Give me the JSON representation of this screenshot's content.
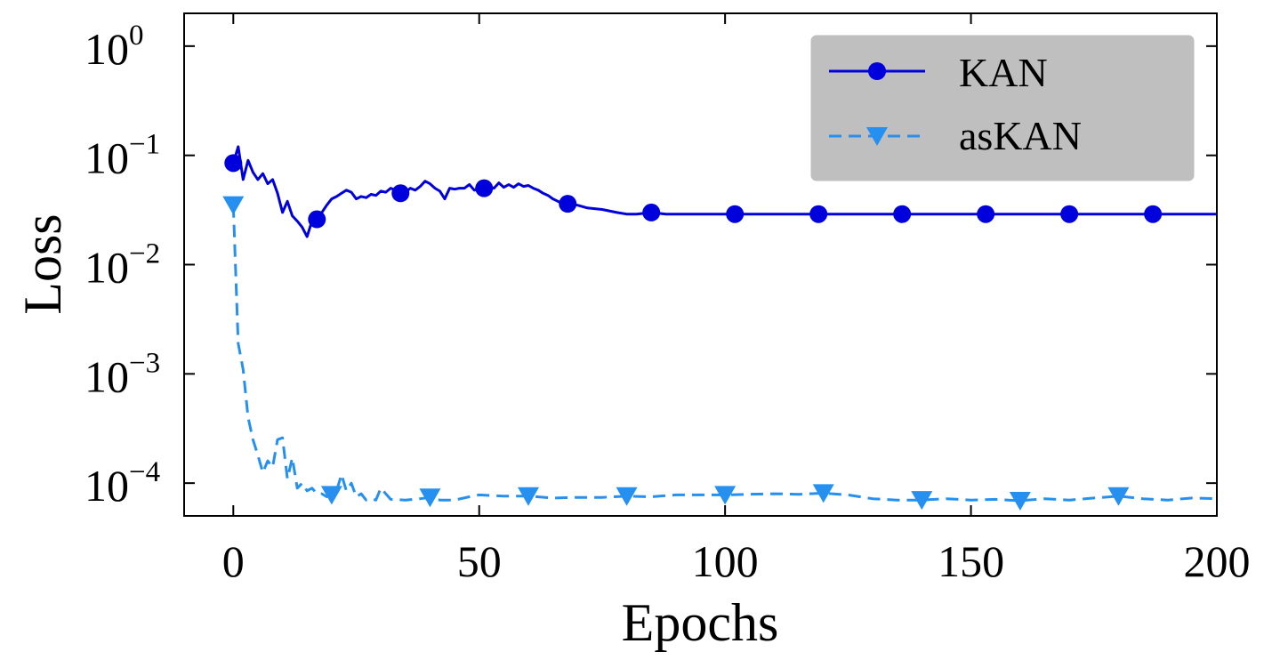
{
  "chart_data": {
    "type": "line",
    "xlabel": "Epochs",
    "ylabel": "Loss",
    "xlim": [
      -10,
      200
    ],
    "ylim_log10": [
      -4.3,
      0.3
    ],
    "yscale": "log",
    "x_ticks": [
      0,
      50,
      100,
      150,
      200
    ],
    "x_tick_labels": [
      "0",
      "50",
      "100",
      "150",
      "200"
    ],
    "y_ticks": [
      {
        "base": "10",
        "exp": "0",
        "value": 1
      },
      {
        "base": "10",
        "exp": "−1",
        "value": 0.1
      },
      {
        "base": "10",
        "exp": "−2",
        "value": 0.01
      },
      {
        "base": "10",
        "exp": "−3",
        "value": 0.001
      },
      {
        "base": "10",
        "exp": "−4",
        "value": 0.0001
      }
    ],
    "grid": false,
    "legend_position": "top-right",
    "series": [
      {
        "name": "KAN",
        "color": "#0000dd",
        "line_style": "solid",
        "marker": "circle",
        "marker_x": [
          0,
          17,
          34,
          51,
          68,
          85,
          102,
          119,
          136,
          153,
          170,
          187
        ],
        "x": [
          0,
          1,
          2,
          3,
          4,
          5,
          6,
          7,
          8,
          9,
          10,
          11,
          12,
          13,
          14,
          15,
          16,
          17,
          18,
          19,
          20,
          21,
          22,
          23,
          24,
          25,
          26,
          27,
          28,
          29,
          30,
          31,
          32,
          33,
          34,
          35,
          36,
          37,
          38,
          39,
          40,
          41,
          42,
          43,
          44,
          45,
          46,
          47,
          48,
          49,
          50,
          51,
          52,
          53,
          54,
          55,
          56,
          57,
          58,
          59,
          60,
          61,
          62,
          63,
          64,
          65,
          66,
          67,
          68,
          70,
          72,
          75,
          78,
          80,
          82,
          85,
          88,
          90,
          95,
          100,
          110,
          120,
          130,
          140,
          150,
          160,
          170,
          180,
          190,
          200
        ],
        "y": [
          0.085,
          0.12,
          0.06,
          0.09,
          0.07,
          0.06,
          0.068,
          0.055,
          0.06,
          0.045,
          0.03,
          0.038,
          0.028,
          0.025,
          0.022,
          0.018,
          0.025,
          0.026,
          0.03,
          0.035,
          0.04,
          0.042,
          0.045,
          0.048,
          0.046,
          0.04,
          0.042,
          0.041,
          0.044,
          0.043,
          0.047,
          0.046,
          0.05,
          0.048,
          0.045,
          0.046,
          0.05,
          0.048,
          0.052,
          0.058,
          0.055,
          0.05,
          0.047,
          0.04,
          0.05,
          0.049,
          0.05,
          0.05,
          0.054,
          0.048,
          0.05,
          0.05,
          0.052,
          0.05,
          0.056,
          0.051,
          0.054,
          0.051,
          0.055,
          0.052,
          0.053,
          0.05,
          0.048,
          0.045,
          0.043,
          0.04,
          0.038,
          0.036,
          0.036,
          0.035,
          0.033,
          0.032,
          0.03,
          0.029,
          0.029,
          0.03,
          0.029,
          0.029,
          0.029,
          0.029,
          0.029,
          0.029,
          0.029,
          0.029,
          0.029,
          0.029,
          0.029,
          0.029,
          0.029,
          0.029
        ]
      },
      {
        "name": "asKAN",
        "color": "#2590ef",
        "line_style": "dashed",
        "marker": "triangle-down",
        "marker_x": [
          0,
          20,
          40,
          60,
          80,
          100,
          120,
          140,
          160,
          180
        ],
        "x": [
          0,
          1,
          2,
          3,
          4,
          5,
          6,
          7,
          8,
          9,
          10,
          11,
          12,
          13,
          14,
          15,
          16,
          17,
          18,
          19,
          20,
          21,
          22,
          23,
          24,
          25,
          26,
          27,
          28,
          29,
          30,
          32,
          35,
          38,
          40,
          42,
          45,
          48,
          50,
          55,
          60,
          65,
          70,
          75,
          80,
          85,
          90,
          95,
          100,
          105,
          110,
          115,
          120,
          125,
          130,
          135,
          140,
          145,
          150,
          155,
          160,
          165,
          170,
          175,
          180,
          185,
          190,
          195,
          200
        ],
        "y": [
          0.035,
          0.0019,
          0.0011,
          0.0004,
          0.00025,
          0.00018,
          0.000125,
          0.00016,
          0.00014,
          0.00025,
          0.00026,
          0.00011,
          0.00017,
          9e-05,
          0.0001,
          8.5e-05,
          9e-05,
          8e-05,
          8e-05,
          7.5e-05,
          7.8e-05,
          8.5e-05,
          0.00012,
          8.5e-05,
          0.0001,
          7.5e-05,
          8e-05,
          7e-05,
          7.2e-05,
          7e-05,
          9e-05,
          7.1e-05,
          7e-05,
          7.2e-05,
          7.4e-05,
          7e-05,
          7e-05,
          7.5e-05,
          7.8e-05,
          7.6e-05,
          7.6e-05,
          7.3e-05,
          7.4e-05,
          7.4e-05,
          7.6e-05,
          7.5e-05,
          7.8e-05,
          7.8e-05,
          7.8e-05,
          7.9e-05,
          8e-05,
          7.9e-05,
          8.1e-05,
          7.8e-05,
          7.2e-05,
          7e-05,
          7e-05,
          7.2e-05,
          7e-05,
          7.1e-05,
          6.9e-05,
          7.2e-05,
          7e-05,
          7.3e-05,
          7.6e-05,
          7.2e-05,
          7e-05,
          7.3e-05,
          7.2e-05
        ]
      }
    ]
  }
}
